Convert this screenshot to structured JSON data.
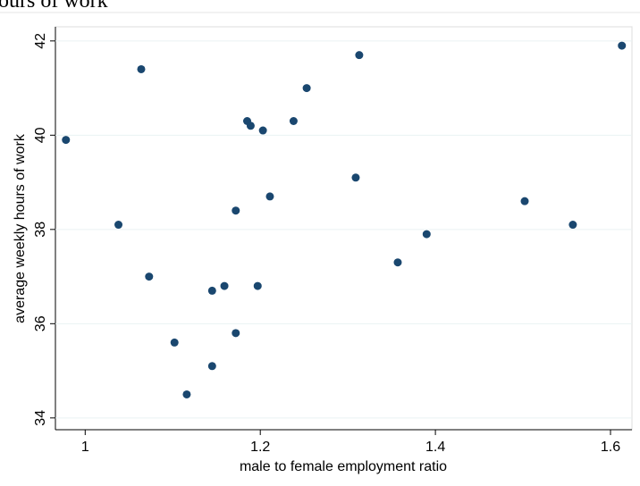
{
  "chart_data": {
    "type": "scatter",
    "title": "ours of work",
    "x_label": "male to female employment ratio",
    "y_label": "average weekly hours of work",
    "color": "#1a476f",
    "grid": true,
    "x": [
      0.978,
      1.038,
      1.064,
      1.073,
      1.102,
      1.116,
      1.145,
      1.145,
      1.159,
      1.172,
      1.172,
      1.185,
      1.189,
      1.197,
      1.203,
      1.211,
      1.238,
      1.253,
      1.309,
      1.313,
      1.357,
      1.39,
      1.502,
      1.557,
      1.613
    ],
    "values": [
      39.9,
      38.1,
      41.4,
      37.0,
      35.6,
      34.5,
      36.7,
      35.1,
      36.8,
      38.4,
      35.8,
      40.3,
      40.2,
      36.8,
      40.1,
      38.7,
      40.3,
      41.0,
      39.1,
      41.7,
      37.3,
      37.9,
      38.6,
      38.1,
      41.9
    ],
    "xlim": [
      0.966,
      1.6245
    ],
    "ylim": [
      33.75,
      42.3
    ],
    "xticks": [
      1,
      1.2,
      1.4,
      1.6
    ],
    "yticks": [
      34,
      36,
      38,
      40,
      42
    ]
  }
}
